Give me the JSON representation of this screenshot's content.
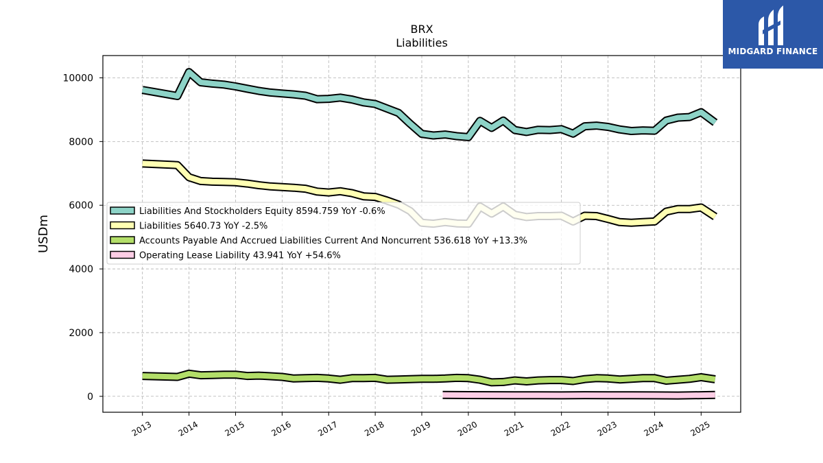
{
  "chart_data": {
    "type": "line",
    "title": "BRX",
    "subtitle": "Liabilities",
    "ylabel": "USDm",
    "xlabel": "",
    "ylim": [
      -500,
      10700
    ],
    "xlim": [
      2012.15,
      2025.85
    ],
    "yticks": [
      0,
      2000,
      4000,
      6000,
      8000,
      10000
    ],
    "xticks": [
      2013,
      2014,
      2015,
      2016,
      2017,
      2018,
      2019,
      2020,
      2021,
      2022,
      2023,
      2024,
      2025
    ],
    "grid": true,
    "legend_position": "center-left",
    "series": [
      {
        "name": "Liabilities And Stockholders Equity  8594.759 YoY -0.6%",
        "color": "#8dd3c7",
        "points": [
          [
            2013.0,
            9620
          ],
          [
            2013.75,
            9430
          ],
          [
            2014.0,
            10180
          ],
          [
            2014.25,
            9860
          ],
          [
            2014.5,
            9820
          ],
          [
            2014.75,
            9790
          ],
          [
            2015.0,
            9730
          ],
          [
            2015.25,
            9660
          ],
          [
            2015.5,
            9590
          ],
          [
            2015.75,
            9540
          ],
          [
            2016.0,
            9510
          ],
          [
            2016.25,
            9480
          ],
          [
            2016.5,
            9440
          ],
          [
            2016.75,
            9330
          ],
          [
            2017.0,
            9340
          ],
          [
            2017.25,
            9380
          ],
          [
            2017.5,
            9320
          ],
          [
            2017.75,
            9230
          ],
          [
            2018.0,
            9180
          ],
          [
            2018.25,
            9040
          ],
          [
            2018.5,
            8900
          ],
          [
            2018.75,
            8560
          ],
          [
            2019.0,
            8240
          ],
          [
            2019.25,
            8190
          ],
          [
            2019.5,
            8220
          ],
          [
            2019.75,
            8170
          ],
          [
            2020.0,
            8140
          ],
          [
            2020.25,
            8650
          ],
          [
            2020.5,
            8430
          ],
          [
            2020.75,
            8660
          ],
          [
            2021.0,
            8360
          ],
          [
            2021.25,
            8300
          ],
          [
            2021.5,
            8370
          ],
          [
            2021.75,
            8360
          ],
          [
            2022.0,
            8390
          ],
          [
            2022.25,
            8250
          ],
          [
            2022.5,
            8480
          ],
          [
            2022.75,
            8500
          ],
          [
            2023.0,
            8460
          ],
          [
            2023.25,
            8380
          ],
          [
            2023.5,
            8330
          ],
          [
            2023.75,
            8350
          ],
          [
            2024.0,
            8340
          ],
          [
            2024.25,
            8660
          ],
          [
            2024.5,
            8750
          ],
          [
            2024.75,
            8770
          ],
          [
            2025.0,
            8920
          ],
          [
            2025.3,
            8595
          ]
        ]
      },
      {
        "name": "Liabilities  5640.73 YoY -2.5%",
        "color": "#ffffb3",
        "points": [
          [
            2013.0,
            7310
          ],
          [
            2013.75,
            7260
          ],
          [
            2014.0,
            6880
          ],
          [
            2014.25,
            6760
          ],
          [
            2014.5,
            6740
          ],
          [
            2014.75,
            6730
          ],
          [
            2015.0,
            6720
          ],
          [
            2015.25,
            6680
          ],
          [
            2015.5,
            6630
          ],
          [
            2015.75,
            6590
          ],
          [
            2016.0,
            6570
          ],
          [
            2016.25,
            6550
          ],
          [
            2016.5,
            6520
          ],
          [
            2016.75,
            6430
          ],
          [
            2017.0,
            6400
          ],
          [
            2017.25,
            6440
          ],
          [
            2017.5,
            6380
          ],
          [
            2017.75,
            6280
          ],
          [
            2018.0,
            6260
          ],
          [
            2018.25,
            6150
          ],
          [
            2018.5,
            6020
          ],
          [
            2018.75,
            5820
          ],
          [
            2019.0,
            5450
          ],
          [
            2019.25,
            5420
          ],
          [
            2019.5,
            5470
          ],
          [
            2019.75,
            5430
          ],
          [
            2020.0,
            5420
          ],
          [
            2020.25,
            5960
          ],
          [
            2020.5,
            5740
          ],
          [
            2020.75,
            5960
          ],
          [
            2021.0,
            5700
          ],
          [
            2021.25,
            5630
          ],
          [
            2021.5,
            5660
          ],
          [
            2021.75,
            5660
          ],
          [
            2022.0,
            5670
          ],
          [
            2022.25,
            5490
          ],
          [
            2022.5,
            5670
          ],
          [
            2022.75,
            5660
          ],
          [
            2023.0,
            5570
          ],
          [
            2023.25,
            5470
          ],
          [
            2023.5,
            5450
          ],
          [
            2023.75,
            5470
          ],
          [
            2024.0,
            5490
          ],
          [
            2024.25,
            5800
          ],
          [
            2024.5,
            5880
          ],
          [
            2024.75,
            5880
          ],
          [
            2025.0,
            5930
          ],
          [
            2025.3,
            5641
          ]
        ]
      },
      {
        "name": "Accounts Payable And Accrued Liabilities Current And Noncurrent  536.618 YoY +13.3%",
        "color": "#b3de69",
        "points": [
          [
            2013.0,
            640
          ],
          [
            2013.75,
            610
          ],
          [
            2014.0,
            710
          ],
          [
            2014.25,
            660
          ],
          [
            2014.5,
            670
          ],
          [
            2014.75,
            680
          ],
          [
            2015.0,
            680
          ],
          [
            2015.25,
            640
          ],
          [
            2015.5,
            650
          ],
          [
            2015.75,
            630
          ],
          [
            2016.0,
            610
          ],
          [
            2016.25,
            560
          ],
          [
            2016.5,
            570
          ],
          [
            2016.75,
            580
          ],
          [
            2017.0,
            560
          ],
          [
            2017.25,
            520
          ],
          [
            2017.5,
            570
          ],
          [
            2017.75,
            570
          ],
          [
            2018.0,
            580
          ],
          [
            2018.25,
            520
          ],
          [
            2018.5,
            530
          ],
          [
            2018.75,
            540
          ],
          [
            2019.0,
            550
          ],
          [
            2019.25,
            550
          ],
          [
            2019.5,
            560
          ],
          [
            2019.75,
            580
          ],
          [
            2020.0,
            570
          ],
          [
            2020.25,
            520
          ],
          [
            2020.5,
            440
          ],
          [
            2020.75,
            450
          ],
          [
            2021.0,
            500
          ],
          [
            2021.25,
            470
          ],
          [
            2021.5,
            500
          ],
          [
            2021.75,
            510
          ],
          [
            2022.0,
            510
          ],
          [
            2022.25,
            480
          ],
          [
            2022.5,
            540
          ],
          [
            2022.75,
            570
          ],
          [
            2023.0,
            560
          ],
          [
            2023.25,
            530
          ],
          [
            2023.5,
            550
          ],
          [
            2023.75,
            570
          ],
          [
            2024.0,
            570
          ],
          [
            2024.25,
            490
          ],
          [
            2024.5,
            520
          ],
          [
            2024.75,
            550
          ],
          [
            2025.0,
            600
          ],
          [
            2025.3,
            537
          ]
        ]
      },
      {
        "name": "Operating Lease Liability  43.941 YoY +54.6%",
        "color": "#fccde5",
        "points": [
          [
            2019.45,
            42
          ],
          [
            2020.0,
            39
          ],
          [
            2020.5,
            36
          ],
          [
            2021.0,
            34
          ],
          [
            2021.5,
            32
          ],
          [
            2022.0,
            30
          ],
          [
            2022.5,
            36
          ],
          [
            2023.0,
            34
          ],
          [
            2023.5,
            31
          ],
          [
            2024.0,
            29
          ],
          [
            2024.5,
            26
          ],
          [
            2025.0,
            36
          ],
          [
            2025.3,
            44
          ]
        ]
      }
    ]
  },
  "logo": {
    "text": "MIDGARD FINANCE",
    "background": "#2c58a8"
  }
}
